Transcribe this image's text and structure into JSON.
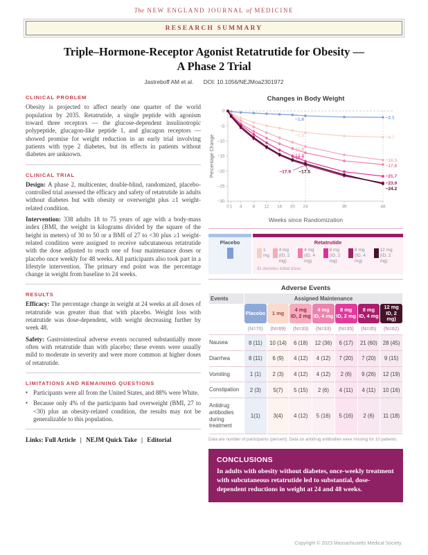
{
  "masthead": {
    "the": "The",
    "part1": "NEW ENGLAND JOURNAL",
    "of": "of",
    "part2": "MEDICINE"
  },
  "banner": {
    "label": "RESEARCH SUMMARY"
  },
  "title": {
    "line1": "Triple–Hormone-Receptor Agonist Retatrutide for Obesity —",
    "line2": "A Phase 2 Trial"
  },
  "byline": {
    "authors": "Jastreboff AM et al.",
    "doi": "DOI: 10.1056/NEJMoa2301972"
  },
  "sections": {
    "clinical_problem": {
      "heading": "CLINICAL PROBLEM",
      "body": "Obesity is projected to affect nearly one quarter of the world population by 2035. Retatrutide, a single peptide with agonism toward three receptors — the glucose-dependent insulinotropic polypeptide, glucagon-like peptide 1, and glucagon receptors — showed promise for weight reduction in an early trial involving patients with type 2 diabetes, but its effects in patients without diabetes are unknown."
    },
    "clinical_trial": {
      "heading": "CLINICAL TRIAL",
      "design_label": "Design:",
      "design": "A phase 2, multicenter, double-blind, randomized, placebo-controlled trial assessed the efficacy and safety of retatrutide in adults without diabetes but with obesity or overweight plus ≥1 weight-related condition.",
      "intervention_label": "Intervention:",
      "intervention": "338 adults 18 to 75 years of age with a body-mass index (BMI, the weight in kilograms divided by the square of the height in meters) of 30 to 50 or a BMI of 27 to <30 plus ≥1 weight-related condition were assigned to receive subcutaneous retatrutide with the dose adjusted to reach one of four maintenance doses or placebo once weekly for 48 weeks. All participants also took part in a lifestyle intervention. The primary end point was the percentage change in weight from baseline to 24 weeks."
    },
    "results": {
      "heading": "RESULTS",
      "efficacy_label": "Efficacy:",
      "efficacy": "The percentage change in weight at 24 weeks at all doses of retatrutide was greater than that with placebo. Weight loss with retatrutide was dose-dependent, with weight decreasing further by week 48.",
      "safety_label": "Safety:",
      "safety": "Gastrointestinal adverse events occurred substantially more often with retatrutide than with placebo; these events were usually mild to moderate in severity and were more common at higher doses of retatrutide."
    },
    "limitations": {
      "heading": "LIMITATIONS AND REMAINING QUESTIONS",
      "bullets": [
        "Participants were all from the United States, and 88% were White.",
        "Because only 4% of the participants had overweight (BMI, 27 to <30) plus an obesity-related condition, the results may not be generalizable to this population."
      ]
    },
    "links": {
      "label": "Links:",
      "separator": "|",
      "items": [
        "Full Article",
        "NEJM Quick Take",
        "Editorial"
      ]
    }
  },
  "chart_data": {
    "type": "line",
    "title": "Changes in Body Weight",
    "xlabel": "Weeks since Randomization",
    "ylabel": "Percentage Change",
    "x": [
      0,
      1,
      4,
      8,
      12,
      16,
      20,
      24,
      36,
      48
    ],
    "x_ticks": [
      "0",
      "1",
      "4",
      "8",
      "12",
      "16",
      "20",
      "24",
      "36",
      "48"
    ],
    "y_ticks": [
      0,
      -5,
      -10,
      -15,
      -20,
      -25,
      -30
    ],
    "ylim": [
      -30,
      0
    ],
    "grid": "dashed zero line; dashed vertical lines at weeks 24 and 48",
    "legend_position": "below",
    "series": [
      {
        "name": "Placebo",
        "color": "#7d9ed6",
        "values": [
          0,
          -0.2,
          -0.5,
          -0.7,
          -0.9,
          -1.1,
          -1.3,
          -1.6,
          -2.0,
          -2.1
        ],
        "label_24wk": "−1.6",
        "label_48wk": "−2.1"
      },
      {
        "name": "1 mg",
        "color": "#f5cfc0",
        "values": [
          0,
          -0.8,
          -2.3,
          -3.8,
          -4.9,
          -5.7,
          -6.5,
          -7.2,
          -8.3,
          -8.7
        ],
        "label_24wk": "−7.2",
        "label_48wk": "−8.7"
      },
      {
        "name": "4 mg (ID, 2 mg)",
        "color": "#f3acba",
        "values": [
          0,
          -1.0,
          -3.2,
          -5.3,
          -7.2,
          -8.9,
          -10.4,
          -11.8,
          -14.6,
          -16.3
        ],
        "label_24wk": "−11.8",
        "label_48wk": "−16.3"
      },
      {
        "name": "4 mg (ID, 4 mg)",
        "color": "#ec7fab",
        "values": [
          0,
          -1.3,
          -4.2,
          -6.8,
          -9.0,
          -10.9,
          -12.5,
          -13.9,
          -16.6,
          -17.8
        ],
        "label_24wk": "−13.9",
        "label_48wk": "−17.8"
      },
      {
        "name": "8 mg (ID, 2 mg)",
        "color": "#de3193",
        "values": [
          0,
          -1.4,
          -4.6,
          -7.8,
          -10.6,
          -13.0,
          -15.0,
          -16.7,
          -20.2,
          -21.7
        ],
        "label_24wk": "−16.7",
        "label_48wk": "−21.7"
      },
      {
        "name": "8 mg (ID, 4 mg)",
        "color": "#a32169",
        "values": [
          0,
          -1.9,
          -5.6,
          -9.2,
          -12.2,
          -14.7,
          -16.5,
          -17.9,
          -21.6,
          -23.9
        ],
        "label_24wk": "−17.9",
        "label_48wk": "−23.9"
      },
      {
        "name": "12 mg (ID, 2 mg)",
        "color": "#4b102d",
        "values": [
          0,
          -1.7,
          -5.2,
          -8.8,
          -11.9,
          -14.4,
          -16.2,
          -17.5,
          -21.2,
          -24.2
        ],
        "label_24wk": "−17.5",
        "label_48wk": "−24.2"
      }
    ]
  },
  "legend": {
    "placebo_label": "Placebo",
    "placebo_color": "#7d9ed6",
    "retatrutide_label": "Retatrutide",
    "note": "ID denotes initial dose.",
    "entries": [
      {
        "label": "1 mg",
        "sub": "",
        "color": "#f5cfc0"
      },
      {
        "label": "4 mg",
        "sub": "(ID, 2 mg)",
        "color": "#f3acba"
      },
      {
        "label": "4 mg",
        "sub": "(ID, 4 mg)",
        "color": "#ec7fab"
      },
      {
        "label": "8 mg",
        "sub": "(ID, 2 mg)",
        "color": "#de3193"
      },
      {
        "label": "8 mg",
        "sub": "(ID, 4 mg)",
        "color": "#a32169"
      },
      {
        "label": "12 mg",
        "sub": "(ID, 2 mg)",
        "color": "#4b102d"
      }
    ]
  },
  "adverse_events": {
    "title": "Adverse Events",
    "events_header": "Events",
    "group_header": "Assigned Maintenance",
    "columns": [
      {
        "label": "Placebo",
        "sub": "",
        "n": "(N=70)",
        "bg": "#8ca9da",
        "fg": "#ffffff",
        "tint": "#eaeef7",
        "n_color": "#7f8ca6"
      },
      {
        "label": "1 mg",
        "sub": "",
        "n": "(N=69)",
        "bg": "#f9dacb",
        "fg": "#9c4a5e",
        "tint": "#fdf4f0",
        "n_color": "#b36a8c"
      },
      {
        "label": "4 mg",
        "sub": "ID, 2 mg",
        "n": "(N=33)",
        "bg": "#f6abbc",
        "fg": "#8e2457",
        "tint": "#fdf1f3",
        "n_color": "#b36a8c"
      },
      {
        "label": "4 mg",
        "sub": "ID, 4 mg",
        "n": "(N=33)",
        "bg": "#ef81ae",
        "fg": "#ffffff",
        "tint": "#fcf0f5",
        "n_color": "#b36a8c"
      },
      {
        "label": "8 mg",
        "sub": "ID, 2 mg",
        "n": "(N=35)",
        "bg": "#e23a9c",
        "fg": "#ffffff",
        "tint": "#fbe4f0",
        "n_color": "#b36a8c"
      },
      {
        "label": "8 mg",
        "sub": "ID, 4 mg",
        "n": "(N=35)",
        "bg": "#a81e6b",
        "fg": "#ffffff",
        "tint": "#f8e7f0",
        "n_color": "#b36a8c"
      },
      {
        "label": "12 mg",
        "sub": "ID, 2 mg)",
        "n": "(N=62)",
        "bg": "#451329",
        "fg": "#ffffff",
        "tint": "#f6eaf0",
        "n_color": "#b36a8c"
      }
    ],
    "rows": [
      {
        "label": "Nausea",
        "values": [
          "8 (11)",
          "10 (14)",
          "6 (18)",
          "12 (36)",
          "6 (17)",
          "21 (60)",
          "28 (45)"
        ]
      },
      {
        "label": "Diarrhea",
        "values": [
          "8 (11)",
          "6 (9)",
          "4 (12)",
          "4 (12)",
          "7 (20)",
          "7 (20)",
          "9 (15)"
        ]
      },
      {
        "label": "Vomiting",
        "values": [
          "1 (1)",
          "2 (3)",
          "4 (12)",
          "4 (12)",
          "2 (6)",
          "9 (26)",
          "12 (19)"
        ]
      },
      {
        "label": "Constipation",
        "values": [
          "2 (3)",
          "5(7)",
          "5 (15)",
          "2 (6)",
          "4 (11)",
          "4 (11)",
          "10 (16)"
        ]
      },
      {
        "label": "Antidrug antibodies during treatment",
        "values": [
          "1(1)",
          "3(4)",
          "4 (12)",
          "5 (16)",
          "5 (16)",
          "2 (6)",
          "11 (18)"
        ]
      }
    ],
    "footnote": "Data are number of participants (percent). Data on antidrug antibodies were missing for 10 patients."
  },
  "conclusions": {
    "heading": "CONCLUSIONS",
    "text": "In adults with obesity without diabetes, once-weekly treatment with subcutaneous retatrutide led to substantial, dose-dependent reductions in weight at 24 and 48 weeks."
  },
  "footer": {
    "copyright": "Copyright © 2023  Massachusetts Medical Society."
  }
}
